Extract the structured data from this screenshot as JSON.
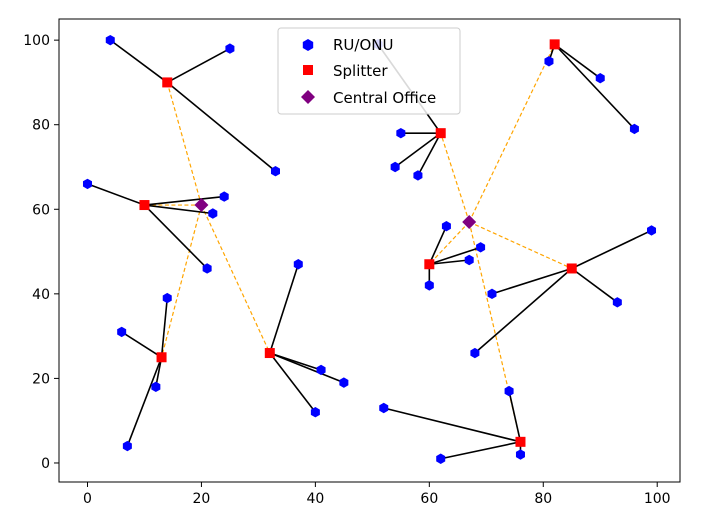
{
  "chart_data": {
    "type": "scatter",
    "title": "",
    "xlabel": "",
    "ylabel": "",
    "xlim": [
      -5,
      104
    ],
    "ylim": [
      -4.5,
      105
    ],
    "xticks": [
      0,
      20,
      40,
      60,
      80,
      100
    ],
    "yticks": [
      0,
      20,
      40,
      60,
      80,
      100
    ],
    "grid": false,
    "legend_position": "top-center",
    "legend": [
      {
        "name": "RU/ONU",
        "color": "#0000ff",
        "marker": "hexagon"
      },
      {
        "name": "Splitter",
        "color": "#ff0000",
        "marker": "square"
      },
      {
        "name": "Central Office",
        "color": "#800080",
        "marker": "diamond"
      }
    ],
    "central_offices": [
      {
        "x": 20,
        "y": 61
      },
      {
        "x": 67,
        "y": 57
      }
    ],
    "splitters": [
      {
        "x": 14,
        "y": 90,
        "office": 0,
        "rus": [
          [
            4,
            100
          ],
          [
            25,
            98
          ],
          [
            33,
            69
          ]
        ]
      },
      {
        "x": 10,
        "y": 61,
        "office": 0,
        "rus": [
          [
            0,
            66
          ],
          [
            24,
            63
          ],
          [
            22,
            59
          ],
          [
            21,
            46
          ]
        ]
      },
      {
        "x": 13,
        "y": 25,
        "office": 0,
        "rus": [
          [
            6,
            31
          ],
          [
            14,
            39
          ],
          [
            12,
            18
          ],
          [
            7,
            4
          ]
        ]
      },
      {
        "x": 32,
        "y": 26,
        "office": 0,
        "rus": [
          [
            37,
            47
          ],
          [
            41,
            22
          ],
          [
            45,
            19
          ],
          [
            40,
            12
          ]
        ]
      },
      {
        "x": 62,
        "y": 78,
        "office": 1,
        "rus": [
          [
            51,
            99
          ],
          [
            55,
            78
          ],
          [
            54,
            70
          ],
          [
            58,
            68
          ]
        ]
      },
      {
        "x": 60,
        "y": 47,
        "office": 1,
        "rus": [
          [
            63,
            56
          ],
          [
            69,
            51
          ],
          [
            67,
            48
          ],
          [
            60,
            42
          ]
        ]
      },
      {
        "x": 82,
        "y": 99,
        "office": 1,
        "rus": [
          [
            81,
            95
          ],
          [
            90,
            91
          ],
          [
            96,
            79
          ]
        ]
      },
      {
        "x": 85,
        "y": 46,
        "office": 1,
        "rus": [
          [
            99,
            55
          ],
          [
            93,
            38
          ],
          [
            71,
            40
          ],
          [
            68,
            26
          ]
        ]
      },
      {
        "x": 76,
        "y": 5,
        "office": 1,
        "rus": [
          [
            74,
            17
          ],
          [
            52,
            13
          ],
          [
            62,
            1
          ],
          [
            76,
            2
          ]
        ]
      }
    ],
    "colors": {
      "ru_link": "#000000",
      "office_link": "#ffa500",
      "ru": "#0000ff",
      "splitter": "#ff0000",
      "office": "#800080"
    }
  }
}
